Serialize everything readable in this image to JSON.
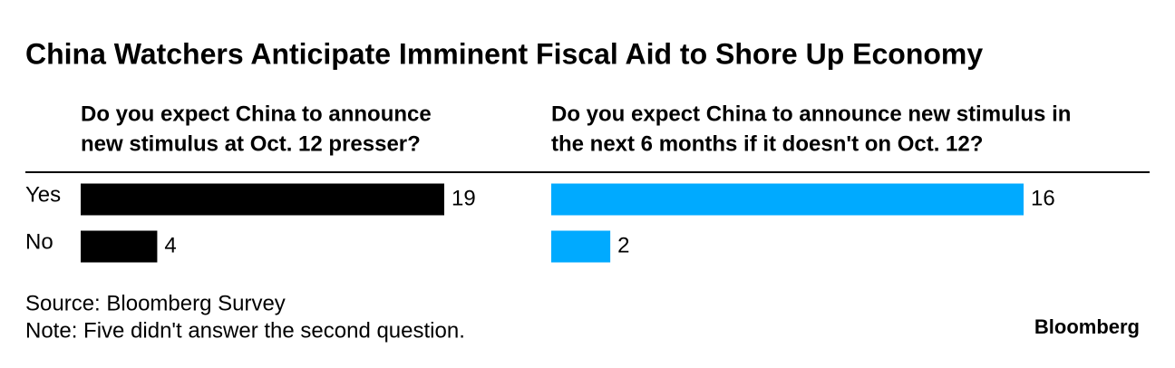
{
  "title": "China Watchers Anticipate Imminent Fiscal Aid to Shore Up Economy",
  "chart_data": [
    {
      "type": "bar",
      "orientation": "horizontal",
      "subtitle": [
        "Do you expect China to announce",
        "new stimulus at Oct. 12 presser?"
      ],
      "categories": [
        "Yes",
        "No"
      ],
      "values": [
        19,
        4
      ],
      "color": "#000000"
    },
    {
      "type": "bar",
      "orientation": "horizontal",
      "subtitle": [
        "Do you expect China to announce new stimulus in",
        "the next 6 months if it doesn't on Oct. 12?"
      ],
      "values": [
        16,
        2
      ],
      "color": "#00aaff"
    }
  ],
  "source": "Source: Bloomberg Survey",
  "note": "Note: Five didn't answer the second question.",
  "logo": "Bloomberg"
}
